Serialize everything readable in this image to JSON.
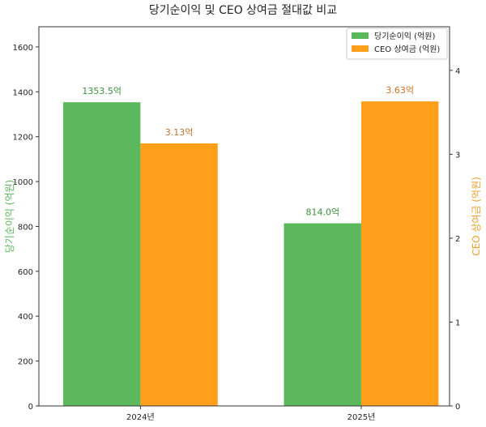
{
  "chart_data": {
    "type": "bar",
    "title": "당기순이익 및 CEO 상여금 절대값 비교",
    "categories": [
      "2024년",
      "2025년"
    ],
    "series": [
      {
        "name": "당기순이익 (억원)",
        "axis": "left",
        "color": "#5cb85c",
        "values": [
          1353.5,
          814.0
        ],
        "labels": [
          "1353.5억",
          "814.0억"
        ],
        "label_color": "#3e8e3e"
      },
      {
        "name": "CEO 상여금 (억원)",
        "axis": "right",
        "color": "#ff9f1a",
        "values": [
          3.13,
          3.63
        ],
        "labels": [
          "3.13억",
          "3.63억"
        ],
        "label_color": "#c8702a"
      }
    ],
    "ylabel_left": "당기순이익 (억원)",
    "ylabel_right": "CEO 상여금 (억원)",
    "ylabel_left_color": "#5cb85c",
    "ylabel_right_color": "#f0a030",
    "ylim_left": [
      0,
      1690
    ],
    "ylim_right": [
      0,
      4.52
    ],
    "yticks_left": [
      "0",
      "200",
      "400",
      "600",
      "800",
      "1000",
      "1200",
      "1400",
      "1600"
    ],
    "yticks_right": [
      "0",
      "1",
      "2",
      "3",
      "4"
    ],
    "grid": false,
    "legend": "top-right"
  }
}
